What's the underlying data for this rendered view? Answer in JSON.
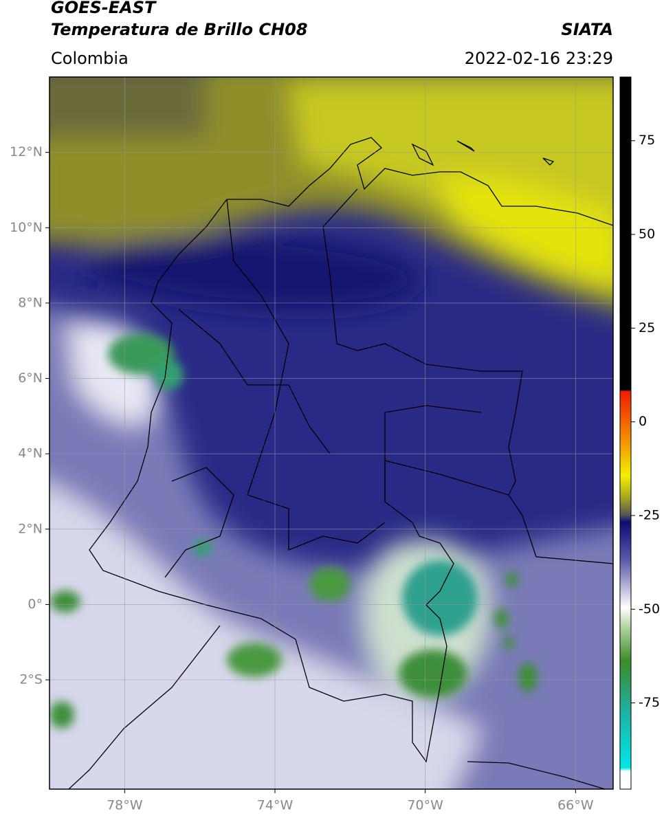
{
  "header": {
    "title": "GOES-EAST",
    "subtitle": "Temperatura de Brillo CH08",
    "source": "SIATA",
    "region": "Colombia",
    "datetime": "2022-02-16 23:29"
  },
  "map": {
    "xlim": [
      -80,
      -65
    ],
    "ylim": [
      -4.9,
      14
    ],
    "xticks": [
      {
        "value": -78,
        "label": "78°W"
      },
      {
        "value": -74,
        "label": "74°W"
      },
      {
        "value": -70,
        "label": "70°W"
      },
      {
        "value": -66,
        "label": "66°W"
      }
    ],
    "yticks": [
      {
        "value": 12,
        "label": "12°N"
      },
      {
        "value": 10,
        "label": "10°N"
      },
      {
        "value": 8,
        "label": "8°N"
      },
      {
        "value": 6,
        "label": "6°N"
      },
      {
        "value": 4,
        "label": "4°N"
      },
      {
        "value": 2,
        "label": "2°N"
      },
      {
        "value": 0,
        "label": "0°"
      },
      {
        "value": -2,
        "label": "2°S"
      }
    ],
    "grid": true
  },
  "colorbar": {
    "lim": [
      -98,
      92
    ],
    "ticks": [
      -75,
      -50,
      -25,
      0,
      25,
      50,
      75
    ]
  }
}
